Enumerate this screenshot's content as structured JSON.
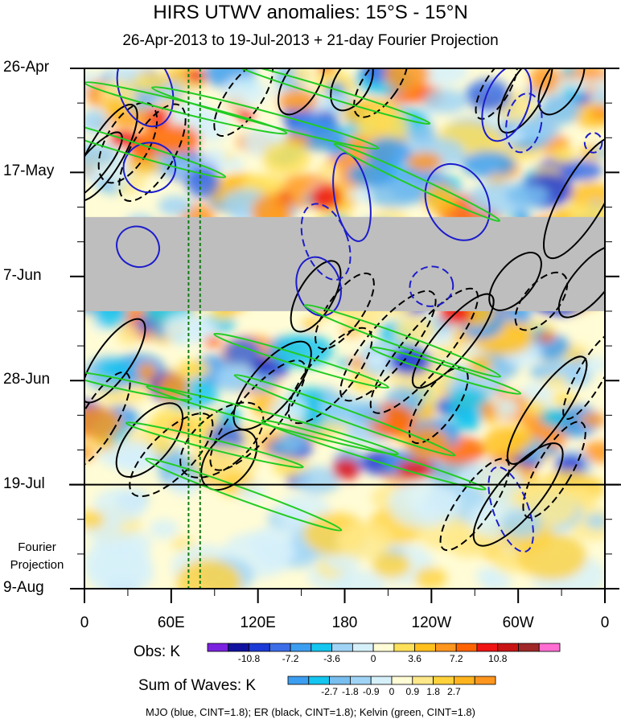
{
  "title": "HIRS UTWV anomalies: 15°S - 15°N",
  "subtitle": "26-Apr-2013 to 19-Jul-2013 + 21-day Fourier Projection",
  "projection_label_line1": "Fourier",
  "projection_label_line2": "Projection",
  "footnote": "MJO (blue, CINT=1.8); ER (black, CINT=1.8); Kelvin (green, CINT=1.8)",
  "colors": {
    "mjo": "#1c1ccc",
    "er": "#000000",
    "kelvin": "#22cc22",
    "missing": "#bebebe",
    "marker_lines": "#137a13"
  },
  "chart_data": {
    "type": "heatmap",
    "x_axis": {
      "label": "",
      "ticks": [
        "0",
        "60E",
        "120E",
        "180",
        "120W",
        "60W",
        "0"
      ],
      "tick_longitudes": [
        0,
        60,
        120,
        180,
        240,
        300,
        360
      ],
      "range": [
        0,
        360
      ]
    },
    "y_axis": {
      "ticks": [
        "26-Apr",
        "17-May",
        "7-Jun",
        "28-Jun",
        "19-Jul",
        "9-Aug"
      ],
      "tick_days": [
        0,
        21,
        42,
        63,
        84,
        105
      ],
      "range_days": [
        0,
        105
      ],
      "reversed": true
    },
    "observation_end_day": 84,
    "missing_data_days": [
      30,
      49
    ],
    "vertical_reference_longitudes": [
      72,
      80
    ],
    "obs_colorbar": {
      "label": "Obs: K",
      "colors": [
        "#7b22e0",
        "#1212a0",
        "#1c3ad6",
        "#3c6ee8",
        "#3c9ef0",
        "#14c6f0",
        "#a0d4f6",
        "#d6f0fa",
        "#fffcd6",
        "#ffe05a",
        "#ffc01e",
        "#ff961e",
        "#ff6400",
        "#f01414",
        "#c81414",
        "#a02828",
        "#ff6ed2"
      ],
      "labels": [
        "-10.8",
        "-7.2",
        "-3.6",
        "0",
        "3.6",
        "7.2",
        "10.8"
      ]
    },
    "waves_colorbar": {
      "label": "Sum of Waves: K",
      "colors": [
        "#3c9ef0",
        "#14c6f0",
        "#78beee",
        "#a0d4f6",
        "#d6f0fa",
        "#fffcd6",
        "#ffe88a",
        "#ffd23c",
        "#ffb41e",
        "#ff961e"
      ],
      "labels": [
        "-2.7",
        "-1.8",
        "-0.9",
        "0",
        "0.9",
        "1.8",
        "2.7"
      ]
    },
    "series": [
      {
        "name": "MJO",
        "cint": 1.8
      },
      {
        "name": "ER",
        "cint": 1.8
      },
      {
        "name": "Kelvin",
        "cint": 1.8
      }
    ]
  }
}
